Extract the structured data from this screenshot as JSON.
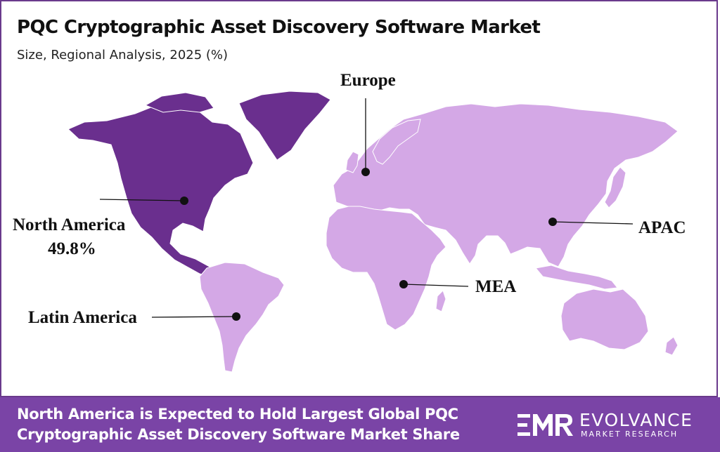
{
  "header": {
    "title": "PQC Cryptographic Asset Discovery Software Market",
    "subtitle": "Size, Regional Analysis, 2025 (%)"
  },
  "map": {
    "highlight_color": "#6a2f8e",
    "base_color": "#d4a8e6",
    "marker_color": "#111111",
    "regions": {
      "north_america": {
        "name": "North America",
        "share": "49.8%"
      },
      "europe": {
        "name": "Europe"
      },
      "apac": {
        "name": "APAC"
      },
      "mea": {
        "name": "MEA"
      },
      "latin_america": {
        "name": "Latin America"
      }
    }
  },
  "footer": {
    "banner_color": "#7a44a6",
    "headline": "North America is Expected to Hold Largest Global PQC Cryptographic Asset Discovery Software Market Share",
    "logo": {
      "brand": "EVOLVANCE",
      "tagline": "MARKET RESEARCH",
      "icon": "emr-logo-icon"
    }
  }
}
